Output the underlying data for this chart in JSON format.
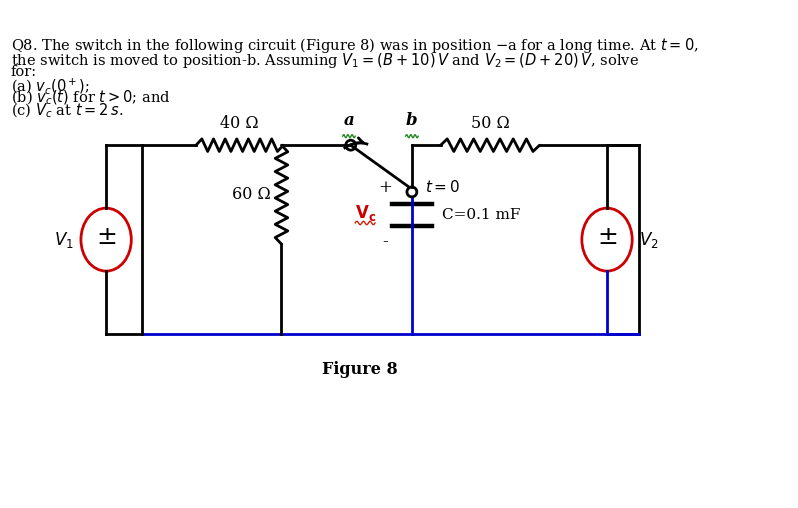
{
  "bg_color": "#ffffff",
  "circuit_color": "#000000",
  "wire_color_blue": "#0000cd",
  "source_color": "#cc0000",
  "resistor_label_40": "40 Ω",
  "resistor_label_60": "60 Ω",
  "resistor_label_50": "50 Ω",
  "cap_label": "C=0.1 mF",
  "v1_label": "$V_1$",
  "v2_label": "$V_2$",
  "figure_label": "Figure 8",
  "switch_a": "a",
  "switch_b": "b",
  "t0_label": "$t{=}0$",
  "plus_label": "+",
  "minus_label": "-"
}
